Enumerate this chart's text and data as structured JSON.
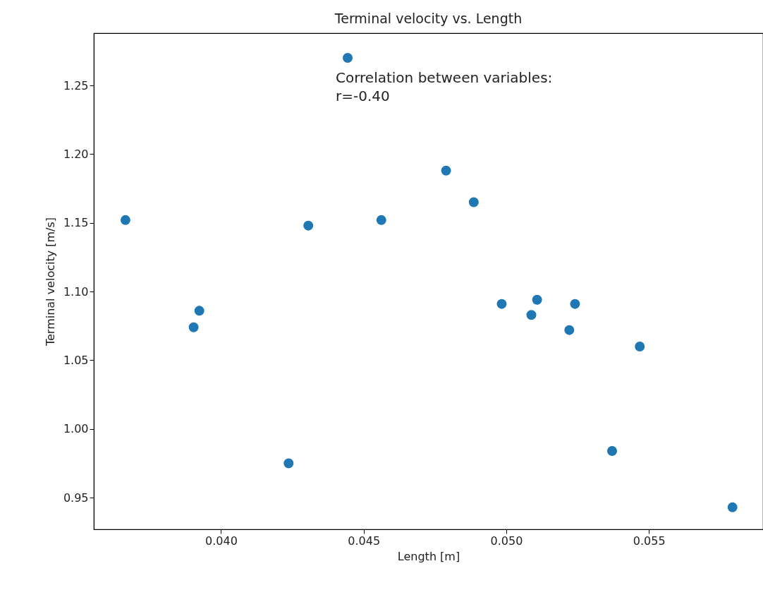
{
  "chart_data": {
    "type": "scatter",
    "title": "Terminal velocity vs. Length",
    "xlabel": "Length [m]",
    "ylabel": "Terminal velocity [m/s]",
    "annotations": [
      "Correlation between variables:\n r=-0.40"
    ],
    "x": [
      0.03665,
      0.03904,
      0.03924,
      0.04237,
      0.04306,
      0.04444,
      0.04562,
      0.04789,
      0.04886,
      0.04984,
      0.05088,
      0.05108,
      0.05221,
      0.05241,
      0.05371,
      0.05468,
      0.05793
    ],
    "series": [
      {
        "color": "#1f77b4",
        "values": [
          1.152,
          1.074,
          1.086,
          0.975,
          1.148,
          1.27,
          1.152,
          1.188,
          1.165,
          1.091,
          1.083,
          1.094,
          1.072,
          1.091,
          0.984,
          1.06,
          0.943
        ]
      }
    ],
    "xlim": [
      0.03554,
      0.059
    ],
    "ylim": [
      0.927,
      1.288
    ],
    "xticks": [
      {
        "value": 0.04,
        "label": "0.040"
      },
      {
        "value": 0.045,
        "label": "0.045"
      },
      {
        "value": 0.05,
        "label": "0.050"
      },
      {
        "value": 0.055,
        "label": "0.055"
      }
    ],
    "yticks": [
      0.95,
      {
        "value": 1.0,
        "label": "1.00"
      },
      1.05,
      {
        "value": 1.1,
        "label": "1.10"
      },
      1.15,
      {
        "value": 1.2,
        "label": "1.20"
      },
      1.25
    ],
    "grid": false,
    "marker": "circle"
  }
}
